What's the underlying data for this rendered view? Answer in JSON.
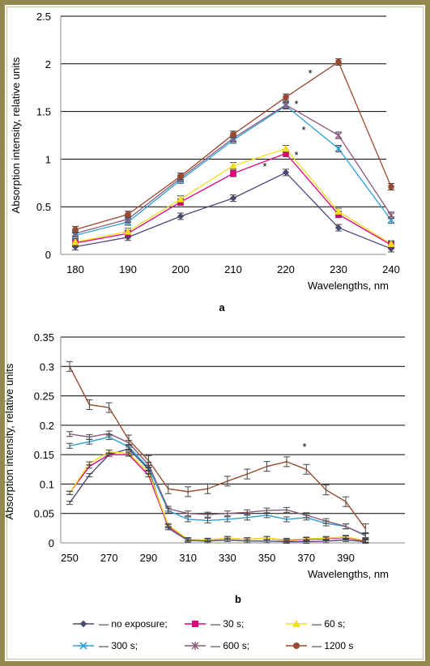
{
  "chart_data": [
    {
      "panel": "a",
      "type": "line",
      "xlabel": "Wavelengths, nm",
      "ylabel": "Absorption intensity, relative units",
      "x": [
        180,
        190,
        200,
        210,
        220,
        230,
        240
      ],
      "ylim": [
        0,
        2.5
      ],
      "yticks": [
        0,
        0.5,
        1,
        1.5,
        2,
        2.5
      ],
      "ytick_labels": [
        "0",
        "0.5",
        "1",
        "1.5",
        "2",
        "2.5"
      ],
      "grid": true,
      "series": [
        {
          "name": "no exposure",
          "color": "#4a4a7a",
          "marker": "diamond",
          "values": [
            0.08,
            0.18,
            0.4,
            0.59,
            0.86,
            0.28,
            0.06
          ]
        },
        {
          "name": "30 s",
          "color": "#e0007c",
          "marker": "square",
          "values": [
            0.12,
            0.22,
            0.55,
            0.85,
            1.06,
            0.42,
            0.1
          ]
        },
        {
          "name": "60 s",
          "color": "#f0e020",
          "marker": "triangle",
          "values": [
            0.13,
            0.24,
            0.58,
            0.93,
            1.11,
            0.45,
            0.11
          ]
        },
        {
          "name": "300 s",
          "color": "#2a9fd8",
          "marker": "x",
          "values": [
            0.2,
            0.34,
            0.78,
            1.2,
            1.56,
            1.11,
            0.36
          ]
        },
        {
          "name": "600 s",
          "color": "#8a5a7a",
          "marker": "star",
          "values": [
            0.22,
            0.37,
            0.8,
            1.22,
            1.57,
            1.25,
            0.41
          ]
        },
        {
          "name": "1200 s",
          "color": "#9a4a30",
          "marker": "circle",
          "values": [
            0.26,
            0.42,
            0.82,
            1.26,
            1.65,
            2.02,
            0.71
          ]
        }
      ],
      "annotations": [
        "*",
        "*",
        "*",
        "*",
        "*"
      ],
      "panel_label": "a"
    },
    {
      "panel": "b",
      "type": "line",
      "xlabel": "Wavelengths, nm",
      "ylabel": "Absorption intensity, relative units",
      "x": [
        250,
        260,
        270,
        280,
        290,
        300,
        310,
        320,
        330,
        340,
        350,
        360,
        370,
        380,
        390,
        400
      ],
      "xticks": [
        250,
        270,
        290,
        310,
        330,
        350,
        370,
        390
      ],
      "ylim": [
        0,
        0.35
      ],
      "yticks": [
        0,
        0.05,
        0.1,
        0.15,
        0.2,
        0.25,
        0.3,
        0.35
      ],
      "ytick_labels": [
        "0",
        "0.05",
        "0.1",
        "0.15",
        "0.2",
        "0.25",
        "0.3",
        "0.35"
      ],
      "grid": true,
      "series": [
        {
          "name": "no exposure",
          "color": "#4a4a7a",
          "values": [
            0.068,
            0.115,
            0.15,
            0.16,
            0.125,
            0.025,
            0.004,
            0.003,
            0.005,
            0.003,
            0.003,
            0.002,
            0.002,
            0.003,
            0.005,
            0.002
          ]
        },
        {
          "name": "30 s",
          "color": "#e0007c",
          "values": [
            0.085,
            0.13,
            0.15,
            0.15,
            0.115,
            0.028,
            0.006,
            0.005,
            0.008,
            0.006,
            0.008,
            0.004,
            0.006,
            0.007,
            0.009,
            0.003
          ]
        },
        {
          "name": "60 s",
          "color": "#f0e020",
          "values": [
            0.085,
            0.135,
            0.155,
            0.152,
            0.12,
            0.03,
            0.006,
            0.005,
            0.008,
            0.006,
            0.008,
            0.005,
            0.007,
            0.008,
            0.01,
            0.004
          ]
        },
        {
          "name": "300 s",
          "color": "#2a9fd8",
          "values": [
            0.165,
            0.172,
            0.18,
            0.163,
            0.128,
            0.055,
            0.04,
            0.038,
            0.04,
            0.043,
            0.047,
            0.04,
            0.043,
            0.033,
            0.028,
            0.013
          ]
        },
        {
          "name": "600 s",
          "color": "#8a5a7a",
          "values": [
            0.185,
            0.18,
            0.186,
            0.17,
            0.133,
            0.058,
            0.05,
            0.048,
            0.05,
            0.052,
            0.055,
            0.056,
            0.047,
            0.037,
            0.028,
            0.012
          ]
        },
        {
          "name": "1200 s",
          "color": "#9a4a30",
          "values": [
            0.3,
            0.235,
            0.23,
            0.175,
            0.14,
            0.092,
            0.087,
            0.092,
            0.105,
            0.117,
            0.13,
            0.138,
            0.125,
            0.09,
            0.07,
            0.024
          ]
        }
      ],
      "annotations": [
        "*"
      ],
      "panel_label": "b"
    }
  ],
  "legend": {
    "entries": [
      {
        "label": "— no exposure;",
        "color": "#4a4a7a",
        "marker": "diamond"
      },
      {
        "label": "— 30 s;",
        "color": "#e0007c",
        "marker": "square"
      },
      {
        "label": "— 60 s;",
        "color": "#f0e020",
        "marker": "triangle"
      },
      {
        "label": "— 300 s;",
        "color": "#2a9fd8",
        "marker": "x"
      },
      {
        "label": "— 600 s;",
        "color": "#8a5a7a",
        "marker": "star"
      },
      {
        "label": "— 1200 s",
        "color": "#9a4a30",
        "marker": "circle"
      }
    ]
  },
  "colors": {
    "frame": "#93894f",
    "grid": "#000000",
    "axis": "#888888"
  }
}
